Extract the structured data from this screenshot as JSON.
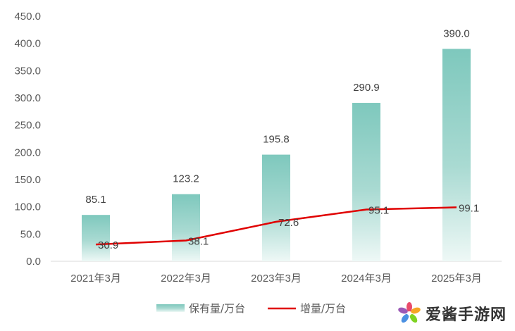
{
  "chart_data": {
    "type": "bar",
    "categories": [
      "2021年3月",
      "2022年3月",
      "2023年3月",
      "2024年3月",
      "2025年3月"
    ],
    "series": [
      {
        "name": "保有量/万台",
        "type": "bar",
        "values": [
          85.1,
          123.2,
          195.8,
          290.9,
          390.0
        ],
        "labels": [
          "85.1",
          "123.2",
          "195.8",
          "290.9",
          "390.0"
        ],
        "color": "#7ec8bd"
      },
      {
        "name": "增量/万台",
        "type": "line",
        "values": [
          30.9,
          38.1,
          72.6,
          95.1,
          99.1
        ],
        "labels": [
          "30.9",
          "38.1",
          "72.6",
          "95.1",
          "99.1"
        ],
        "color": "#e00000"
      }
    ],
    "y_ticks": [
      "0.0",
      "50.0",
      "100.0",
      "150.0",
      "200.0",
      "250.0",
      "300.0",
      "350.0",
      "400.0",
      "450.0"
    ],
    "ylim": [
      0,
      450
    ],
    "grid": false,
    "legend_position": "bottom"
  },
  "watermark": {
    "text": "爱酱手游网",
    "icon": "pinwheel-logo-icon"
  }
}
